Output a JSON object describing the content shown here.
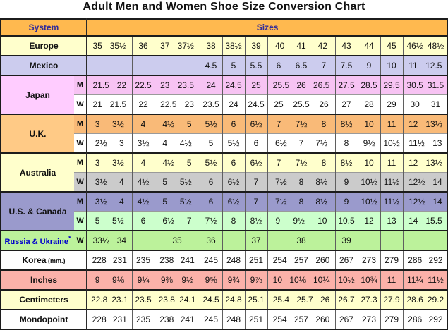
{
  "title": "Adult Men and Women Shoe Size Conversion Chart",
  "header": {
    "system": "System",
    "sizes": "Sizes"
  },
  "colors": {
    "headerOrange": "#FFB94F",
    "headerText": "#312C99",
    "paleYellow": "#FFFFCC",
    "periwinkle": "#CCCCEE",
    "pinkLabel": "#FFCCFF",
    "pinkData": "#F7C3F3",
    "orangeLabel": "#FFCA86",
    "orangeData": "#F9BA78",
    "white": "#FFFFFF",
    "gray": "#CBCBCB",
    "purple": "#9A9ACC",
    "green": "#CCFFCC",
    "ltGreen": "#BCF29B",
    "salmon": "#FBB1A9",
    "linkBlue": "#0000CC",
    "borderDark": "#1C1C1C",
    "borderGray": "#5F5F5F"
  },
  "chart_data": {
    "type": "table",
    "title": "Adult Men and Women Shoe Size Conversion Chart",
    "column_group_spans": [
      2,
      1,
      2,
      1,
      1,
      1,
      3,
      1,
      1,
      1,
      2
    ],
    "rows": [
      {
        "key": "europe",
        "label": "Europe",
        "mw": null,
        "section": true,
        "label_bg": "paleYellow",
        "bg": "paleYellow",
        "groups": [
          [
            "35",
            "35½"
          ],
          [
            "36"
          ],
          [
            "37",
            "37½"
          ],
          [
            "38"
          ],
          [
            "38½"
          ],
          [
            "39"
          ],
          [
            "40",
            "41",
            "42"
          ],
          [
            "43"
          ],
          [
            "44"
          ],
          [
            "45"
          ],
          [
            "46½",
            "48½"
          ]
        ]
      },
      {
        "key": "mexico",
        "label": "Mexico",
        "mw": null,
        "section": true,
        "label_bg": "periwinkle",
        "bg": "periwinkle",
        "groups": [
          [
            ""
          ],
          [
            ""
          ],
          [
            ""
          ],
          [
            "4.5"
          ],
          [
            "5"
          ],
          [
            "5.5"
          ],
          [
            "6",
            "6.5",
            "7"
          ],
          [
            "7.5"
          ],
          [
            "9"
          ],
          [
            "10"
          ],
          [
            "11",
            "12.5"
          ]
        ]
      },
      {
        "key": "japan-m",
        "label": "Japan",
        "rowspan": 2,
        "mw": "M",
        "section": true,
        "label_bg": "pinkLabel",
        "bg": "pinkData",
        "groups": [
          [
            "21.5",
            "22"
          ],
          [
            "22.5"
          ],
          [
            "23",
            "23.5"
          ],
          [
            "24"
          ],
          [
            "24.5"
          ],
          [
            "25"
          ],
          [
            "25.5",
            "26",
            "26.5"
          ],
          [
            "27.5"
          ],
          [
            "28.5"
          ],
          [
            "29.5"
          ],
          [
            "30.5",
            "31.5"
          ]
        ]
      },
      {
        "key": "japan-w",
        "mw": "W",
        "bg": "white",
        "groups": [
          [
            "21",
            "21.5"
          ],
          [
            "22"
          ],
          [
            "22.5",
            "23"
          ],
          [
            "23.5"
          ],
          [
            "24"
          ],
          [
            "24.5"
          ],
          [
            "25",
            "25.5",
            "26"
          ],
          [
            "27"
          ],
          [
            "28"
          ],
          [
            "29"
          ],
          [
            "30",
            "31"
          ]
        ]
      },
      {
        "key": "uk-m",
        "label": "U.K.",
        "rowspan": 2,
        "mw": "M",
        "section": true,
        "label_bg": "orangeLabel",
        "bg": "orangeData",
        "groups": [
          [
            "3",
            "3½"
          ],
          [
            "4"
          ],
          [
            "4½",
            "5"
          ],
          [
            "5½"
          ],
          [
            "6"
          ],
          [
            "6½"
          ],
          [
            "7",
            "7½",
            "8"
          ],
          [
            "8½"
          ],
          [
            "10"
          ],
          [
            "11"
          ],
          [
            "12",
            "13½"
          ]
        ]
      },
      {
        "key": "uk-w",
        "mw": "W",
        "bg": "white",
        "groups": [
          [
            "2½",
            "3"
          ],
          [
            "3½"
          ],
          [
            "4",
            "4½"
          ],
          [
            "5"
          ],
          [
            "5½"
          ],
          [
            "6"
          ],
          [
            "6½",
            "7",
            "7½"
          ],
          [
            "8"
          ],
          [
            "9½"
          ],
          [
            "10½"
          ],
          [
            "11½",
            "13"
          ]
        ]
      },
      {
        "key": "australia-m",
        "label": "Australia",
        "rowspan": 2,
        "mw": "M",
        "section": true,
        "label_bg": "paleYellow",
        "bg": "paleYellow",
        "groups": [
          [
            "3",
            "3½"
          ],
          [
            "4"
          ],
          [
            "4½",
            "5"
          ],
          [
            "5½"
          ],
          [
            "6"
          ],
          [
            "6½"
          ],
          [
            "7",
            "7½",
            "8"
          ],
          [
            "8½"
          ],
          [
            "10"
          ],
          [
            "11"
          ],
          [
            "12",
            "13½"
          ]
        ]
      },
      {
        "key": "australia-w",
        "mw": "W",
        "bg": "gray",
        "groups": [
          [
            "3½",
            "4"
          ],
          [
            "4½"
          ],
          [
            "5",
            "5½"
          ],
          [
            "6"
          ],
          [
            "6½"
          ],
          [
            "7"
          ],
          [
            "7½",
            "8",
            "8½"
          ],
          [
            "9"
          ],
          [
            "10½"
          ],
          [
            "11½"
          ],
          [
            "12½",
            "14"
          ]
        ]
      },
      {
        "key": "us-canada-m",
        "label": "U.S. & Canada",
        "rowspan": 2,
        "mw": "M",
        "section": true,
        "label_bg": "purple",
        "bg": "purple",
        "groups": [
          [
            "3½",
            "4"
          ],
          [
            "4½"
          ],
          [
            "5",
            "5½"
          ],
          [
            "6"
          ],
          [
            "6½"
          ],
          [
            "7"
          ],
          [
            "7½",
            "8",
            "8½"
          ],
          [
            "9"
          ],
          [
            "10½"
          ],
          [
            "11½"
          ],
          [
            "12½",
            "14"
          ]
        ]
      },
      {
        "key": "us-canada-w",
        "mw": "W",
        "bg": "green",
        "groups": [
          [
            "5",
            "5½"
          ],
          [
            "6"
          ],
          [
            "6½",
            "7"
          ],
          [
            "7½"
          ],
          [
            "8"
          ],
          [
            "8½"
          ],
          [
            "9",
            "9½",
            "10"
          ],
          [
            "10.5"
          ],
          [
            "12"
          ],
          [
            "13"
          ],
          [
            "14",
            "15.5"
          ]
        ]
      },
      {
        "key": "russia-ukraine",
        "label": "Russia & Ukraine",
        "link": true,
        "footnote": "*",
        "mw": "W",
        "section": true,
        "label_bg": "ltGreen",
        "bg": "ltGreen",
        "groups": [
          [
            "33½",
            "34"
          ],
          [
            ""
          ],
          [
            "35"
          ],
          [
            "36"
          ],
          [
            ""
          ],
          [
            "37"
          ],
          [
            "38"
          ],
          [
            "39"
          ],
          [
            ""
          ],
          [
            ""
          ],
          [
            ""
          ]
        ]
      },
      {
        "key": "korea",
        "label": "Korea",
        "label_suffix": "(mm.)",
        "mw": null,
        "section": true,
        "label_bg": "white",
        "bg": "white",
        "groups": [
          [
            "228",
            "231"
          ],
          [
            "235"
          ],
          [
            "238",
            "241"
          ],
          [
            "245"
          ],
          [
            "248"
          ],
          [
            "251"
          ],
          [
            "254",
            "257",
            "260"
          ],
          [
            "267"
          ],
          [
            "273"
          ],
          [
            "279"
          ],
          [
            "286",
            "292"
          ]
        ]
      },
      {
        "key": "inches",
        "label": "Inches",
        "mw": null,
        "section": true,
        "label_bg": "salmon",
        "bg": "salmon",
        "groups": [
          [
            "9",
            "9⅛"
          ],
          [
            "9¼"
          ],
          [
            "9⅜",
            "9½"
          ],
          [
            "9⅝"
          ],
          [
            "9¾"
          ],
          [
            "9⅞"
          ],
          [
            "10",
            "10⅛",
            "10¼"
          ],
          [
            "10½"
          ],
          [
            "10¾"
          ],
          [
            "11"
          ],
          [
            "11¼",
            "11½"
          ]
        ]
      },
      {
        "key": "centimeters",
        "label": "Centimeters",
        "mw": null,
        "section": true,
        "label_bg": "paleYellow",
        "bg": "paleYellow",
        "groups": [
          [
            "22.8",
            "23.1"
          ],
          [
            "23.5"
          ],
          [
            "23.8",
            "24.1"
          ],
          [
            "24.5"
          ],
          [
            "24.8"
          ],
          [
            "25.1"
          ],
          [
            "25.4",
            "25.7",
            "26"
          ],
          [
            "26.7"
          ],
          [
            "27.3"
          ],
          [
            "27.9"
          ],
          [
            "28.6",
            "29.2"
          ]
        ]
      },
      {
        "key": "mondopoint",
        "label": "Mondopoint",
        "mw": null,
        "section": true,
        "label_bg": "white",
        "bg": "white",
        "groups": [
          [
            "228",
            "231"
          ],
          [
            "235"
          ],
          [
            "238",
            "241"
          ],
          [
            "245"
          ],
          [
            "248"
          ],
          [
            "251"
          ],
          [
            "254",
            "257",
            "260"
          ],
          [
            "267"
          ],
          [
            "273"
          ],
          [
            "279"
          ],
          [
            "286",
            "292"
          ]
        ]
      }
    ]
  }
}
